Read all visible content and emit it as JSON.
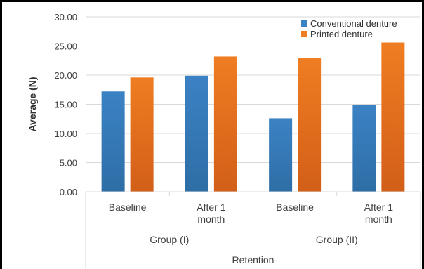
{
  "chart_data": {
    "type": "bar",
    "title": "",
    "ylabel": "Average (N)",
    "xlabel": "Retention",
    "ylim": [
      0,
      30
    ],
    "yticks": [
      "0.00",
      "5.00",
      "10.00",
      "15.00",
      "20.00",
      "25.00",
      "30.00"
    ],
    "categories": [
      "Baseline",
      "After 1 month",
      "Baseline",
      "After 1 month"
    ],
    "category_lines": [
      [
        "Baseline"
      ],
      [
        "After 1",
        "month"
      ],
      [
        "Baseline"
      ],
      [
        "After 1",
        "month"
      ]
    ],
    "groups": [
      "Group (I)",
      "Group (II)"
    ],
    "series": [
      {
        "name": "Conventional denture",
        "color": "#3b82c4",
        "color_dark": "#2e6ea6",
        "values": [
          17.2,
          19.9,
          12.6,
          14.9
        ]
      },
      {
        "name": "Printed denture",
        "color": "#ef7d22",
        "color_dark": "#d25f18",
        "values": [
          19.6,
          23.2,
          22.9,
          25.6
        ]
      }
    ],
    "legend": "top-right",
    "grid": true
  }
}
